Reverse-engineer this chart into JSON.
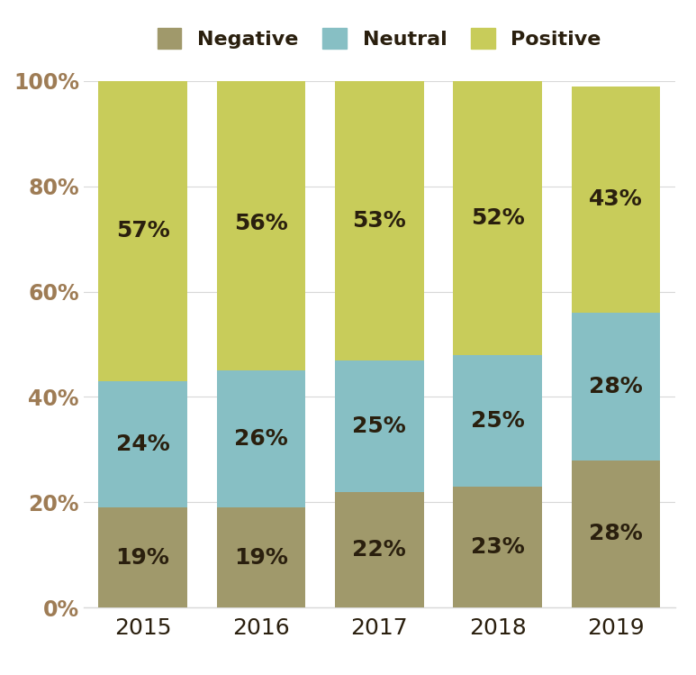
{
  "years": [
    "2015",
    "2016",
    "2017",
    "2018",
    "2019"
  ],
  "negative": [
    19,
    19,
    22,
    23,
    28
  ],
  "neutral": [
    24,
    26,
    25,
    25,
    28
  ],
  "positive": [
    57,
    56,
    53,
    52,
    43
  ],
  "color_negative": "#a0996b",
  "color_neutral": "#87bfc4",
  "color_positive": "#c8cc5a",
  "label_color": "#2a1f0e",
  "axis_tick_color": "#9e7c55",
  "legend_labels": [
    "Negative",
    "Neutral",
    "Positive"
  ],
  "yticks": [
    0,
    20,
    40,
    60,
    80,
    100
  ],
  "ytick_labels": [
    "0%",
    "20%",
    "40%",
    "60%",
    "80%",
    "100%"
  ],
  "bar_width": 0.75,
  "legend_fontsize": 16,
  "tick_fontsize": 17,
  "xtick_fontsize": 18,
  "label_fontsize": 18,
  "background_color": "#ffffff",
  "grid_color": "#d8d8d8"
}
